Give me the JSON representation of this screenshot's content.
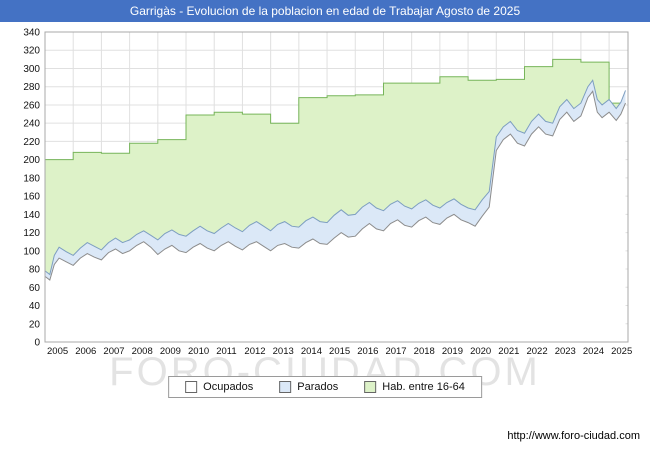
{
  "header": {
    "title": "Garrigàs - Evolucion de la poblacion en edad de Trabajar Agosto de 2025"
  },
  "watermark_text": "FORO-CIUDAD.COM",
  "footer": {
    "url": "http://www.foro-ciudad.com"
  },
  "colors": {
    "header_bg": "#4472c4",
    "header_fg": "#ffffff",
    "grid": "#e0e0e0",
    "plot_border": "#a8a8a8",
    "tick_text": "#111111",
    "watermark": "#e3e3e3"
  },
  "chart_data": {
    "type": "area",
    "title": "Garrigàs - Evolucion de la poblacion en edad de Trabajar Agosto de 2025",
    "xlabel": "",
    "ylabel": "",
    "xlim": [
      2005,
      2025.67
    ],
    "ylim": [
      0,
      340
    ],
    "y_tick_step": 20,
    "x_tick_labels": [
      "2005",
      "2006",
      "2007",
      "2008",
      "2009",
      "2010",
      "2011",
      "2012",
      "2013",
      "2014",
      "2015",
      "2016",
      "2017",
      "2018",
      "2019",
      "2020",
      "2021",
      "2022",
      "2023",
      "2024",
      "2025"
    ],
    "grid": true,
    "legend_position": "bottom",
    "legend": [
      {
        "label": "Ocupados",
        "fill": "#ffffff",
        "stroke": "#8c8c8c"
      },
      {
        "label": "Parados",
        "fill": "#dbe8f7",
        "stroke": "#7d9ec0"
      },
      {
        "label": "Hab. entre 16-64",
        "fill": "#ddf2c8",
        "stroke": "#77b55a"
      }
    ],
    "series": [
      {
        "name": "Hab. entre 16-64",
        "style": "step",
        "fill": "#ddf2c8",
        "stroke": "#77b55a",
        "end_x": 2025.58,
        "points": [
          [
            2005,
            200
          ],
          [
            2006,
            208
          ],
          [
            2007,
            207
          ],
          [
            2008,
            218
          ],
          [
            2009,
            222
          ],
          [
            2010,
            249
          ],
          [
            2011,
            252
          ],
          [
            2012,
            250
          ],
          [
            2013,
            240
          ],
          [
            2014,
            268
          ],
          [
            2015,
            270
          ],
          [
            2016,
            271
          ],
          [
            2017,
            284
          ],
          [
            2018,
            284
          ],
          [
            2019,
            291
          ],
          [
            2020,
            287
          ],
          [
            2021,
            288
          ],
          [
            2022,
            302
          ],
          [
            2023,
            310
          ],
          [
            2024,
            307
          ],
          [
            2025,
            262
          ]
        ]
      },
      {
        "name": "Parados",
        "style": "line",
        "fill": "#dbe8f7",
        "stroke": "#7d9ec0",
        "points": [
          [
            2005.0,
            78
          ],
          [
            2005.17,
            74
          ],
          [
            2005.33,
            95
          ],
          [
            2005.5,
            104
          ],
          [
            2005.75,
            99
          ],
          [
            2006.0,
            95
          ],
          [
            2006.25,
            103
          ],
          [
            2006.5,
            109
          ],
          [
            2006.75,
            105
          ],
          [
            2007.0,
            101
          ],
          [
            2007.25,
            109
          ],
          [
            2007.5,
            114
          ],
          [
            2007.75,
            109
          ],
          [
            2008.0,
            112
          ],
          [
            2008.25,
            118
          ],
          [
            2008.5,
            122
          ],
          [
            2008.75,
            117
          ],
          [
            2009.0,
            112
          ],
          [
            2009.25,
            119
          ],
          [
            2009.5,
            123
          ],
          [
            2009.75,
            118
          ],
          [
            2010.0,
            116
          ],
          [
            2010.25,
            122
          ],
          [
            2010.5,
            127
          ],
          [
            2010.75,
            122
          ],
          [
            2011.0,
            119
          ],
          [
            2011.25,
            125
          ],
          [
            2011.5,
            130
          ],
          [
            2011.75,
            125
          ],
          [
            2012.0,
            121
          ],
          [
            2012.25,
            128
          ],
          [
            2012.5,
            132
          ],
          [
            2012.75,
            127
          ],
          [
            2013.0,
            122
          ],
          [
            2013.25,
            129
          ],
          [
            2013.5,
            132
          ],
          [
            2013.75,
            127
          ],
          [
            2014.0,
            126
          ],
          [
            2014.25,
            133
          ],
          [
            2014.5,
            137
          ],
          [
            2014.75,
            132
          ],
          [
            2015.0,
            131
          ],
          [
            2015.25,
            139
          ],
          [
            2015.5,
            145
          ],
          [
            2015.75,
            139
          ],
          [
            2016.0,
            140
          ],
          [
            2016.25,
            148
          ],
          [
            2016.5,
            153
          ],
          [
            2016.75,
            147
          ],
          [
            2017.0,
            144
          ],
          [
            2017.25,
            151
          ],
          [
            2017.5,
            155
          ],
          [
            2017.75,
            149
          ],
          [
            2018.0,
            146
          ],
          [
            2018.25,
            152
          ],
          [
            2018.5,
            156
          ],
          [
            2018.75,
            150
          ],
          [
            2019.0,
            147
          ],
          [
            2019.25,
            153
          ],
          [
            2019.5,
            157
          ],
          [
            2019.75,
            151
          ],
          [
            2020.0,
            147
          ],
          [
            2020.25,
            145
          ],
          [
            2020.5,
            156
          ],
          [
            2020.75,
            165
          ],
          [
            2021.0,
            225
          ],
          [
            2021.25,
            236
          ],
          [
            2021.5,
            242
          ],
          [
            2021.75,
            232
          ],
          [
            2022.0,
            229
          ],
          [
            2022.25,
            242
          ],
          [
            2022.5,
            250
          ],
          [
            2022.75,
            242
          ],
          [
            2023.0,
            240
          ],
          [
            2023.25,
            258
          ],
          [
            2023.5,
            266
          ],
          [
            2023.75,
            256
          ],
          [
            2024.0,
            262
          ],
          [
            2024.25,
            280
          ],
          [
            2024.42,
            287
          ],
          [
            2024.58,
            266
          ],
          [
            2024.75,
            260
          ],
          [
            2025.0,
            266
          ],
          [
            2025.25,
            256
          ],
          [
            2025.42,
            263
          ],
          [
            2025.58,
            276
          ]
        ]
      },
      {
        "name": "Ocupados",
        "style": "line",
        "fill": "#ffffff",
        "stroke": "#8c8c8c",
        "points": [
          [
            2005.0,
            72
          ],
          [
            2005.17,
            68
          ],
          [
            2005.33,
            85
          ],
          [
            2005.5,
            92
          ],
          [
            2005.75,
            88
          ],
          [
            2006.0,
            84
          ],
          [
            2006.25,
            92
          ],
          [
            2006.5,
            97
          ],
          [
            2006.75,
            93
          ],
          [
            2007.0,
            90
          ],
          [
            2007.25,
            98
          ],
          [
            2007.5,
            102
          ],
          [
            2007.75,
            97
          ],
          [
            2008.0,
            100
          ],
          [
            2008.25,
            106
          ],
          [
            2008.5,
            110
          ],
          [
            2008.75,
            104
          ],
          [
            2009.0,
            96
          ],
          [
            2009.25,
            102
          ],
          [
            2009.5,
            106
          ],
          [
            2009.75,
            100
          ],
          [
            2010.0,
            98
          ],
          [
            2010.25,
            104
          ],
          [
            2010.5,
            108
          ],
          [
            2010.75,
            103
          ],
          [
            2011.0,
            100
          ],
          [
            2011.25,
            106
          ],
          [
            2011.5,
            110
          ],
          [
            2011.75,
            105
          ],
          [
            2012.0,
            101
          ],
          [
            2012.25,
            107
          ],
          [
            2012.5,
            110
          ],
          [
            2012.75,
            105
          ],
          [
            2013.0,
            100
          ],
          [
            2013.25,
            106
          ],
          [
            2013.5,
            108
          ],
          [
            2013.75,
            104
          ],
          [
            2014.0,
            103
          ],
          [
            2014.25,
            109
          ],
          [
            2014.5,
            113
          ],
          [
            2014.75,
            108
          ],
          [
            2015.0,
            107
          ],
          [
            2015.25,
            114
          ],
          [
            2015.5,
            120
          ],
          [
            2015.75,
            115
          ],
          [
            2016.0,
            116
          ],
          [
            2016.25,
            124
          ],
          [
            2016.5,
            130
          ],
          [
            2016.75,
            124
          ],
          [
            2017.0,
            122
          ],
          [
            2017.25,
            130
          ],
          [
            2017.5,
            134
          ],
          [
            2017.75,
            128
          ],
          [
            2018.0,
            126
          ],
          [
            2018.25,
            133
          ],
          [
            2018.5,
            137
          ],
          [
            2018.75,
            131
          ],
          [
            2019.0,
            129
          ],
          [
            2019.25,
            136
          ],
          [
            2019.5,
            140
          ],
          [
            2019.75,
            134
          ],
          [
            2020.0,
            131
          ],
          [
            2020.25,
            127
          ],
          [
            2020.5,
            138
          ],
          [
            2020.75,
            148
          ],
          [
            2021.0,
            210
          ],
          [
            2021.25,
            222
          ],
          [
            2021.5,
            228
          ],
          [
            2021.75,
            218
          ],
          [
            2022.0,
            215
          ],
          [
            2022.25,
            228
          ],
          [
            2022.5,
            236
          ],
          [
            2022.75,
            228
          ],
          [
            2023.0,
            226
          ],
          [
            2023.25,
            244
          ],
          [
            2023.5,
            252
          ],
          [
            2023.75,
            242
          ],
          [
            2024.0,
            248
          ],
          [
            2024.25,
            268
          ],
          [
            2024.42,
            275
          ],
          [
            2024.58,
            252
          ],
          [
            2024.75,
            246
          ],
          [
            2025.0,
            252
          ],
          [
            2025.25,
            243
          ],
          [
            2025.42,
            250
          ],
          [
            2025.58,
            262
          ]
        ]
      }
    ]
  }
}
